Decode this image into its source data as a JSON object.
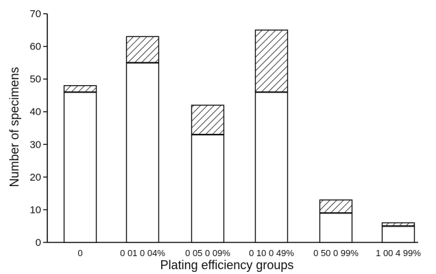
{
  "chart_data": {
    "type": "bar",
    "title": "",
    "xlabel": "Plating efficiency groups",
    "ylabel": "Number of specimens",
    "ylim": [
      0,
      70
    ],
    "yticks": [
      0,
      10,
      20,
      30,
      40,
      50,
      60,
      70
    ],
    "grid": false,
    "categories": [
      "0",
      "0 01 0 04%",
      "0 05 0 09%",
      "0 10 0 49%",
      "0 50 0 99%",
      "1 00 4 99%"
    ],
    "series": [
      {
        "values": [
          46,
          55,
          33,
          46,
          9,
          5
        ],
        "fill": "#ffffff"
      },
      {
        "values": [
          2,
          8,
          9,
          19,
          4,
          1
        ],
        "fill": "hatched"
      }
    ],
    "totals": [
      48,
      63,
      42,
      65,
      13,
      6
    ]
  }
}
